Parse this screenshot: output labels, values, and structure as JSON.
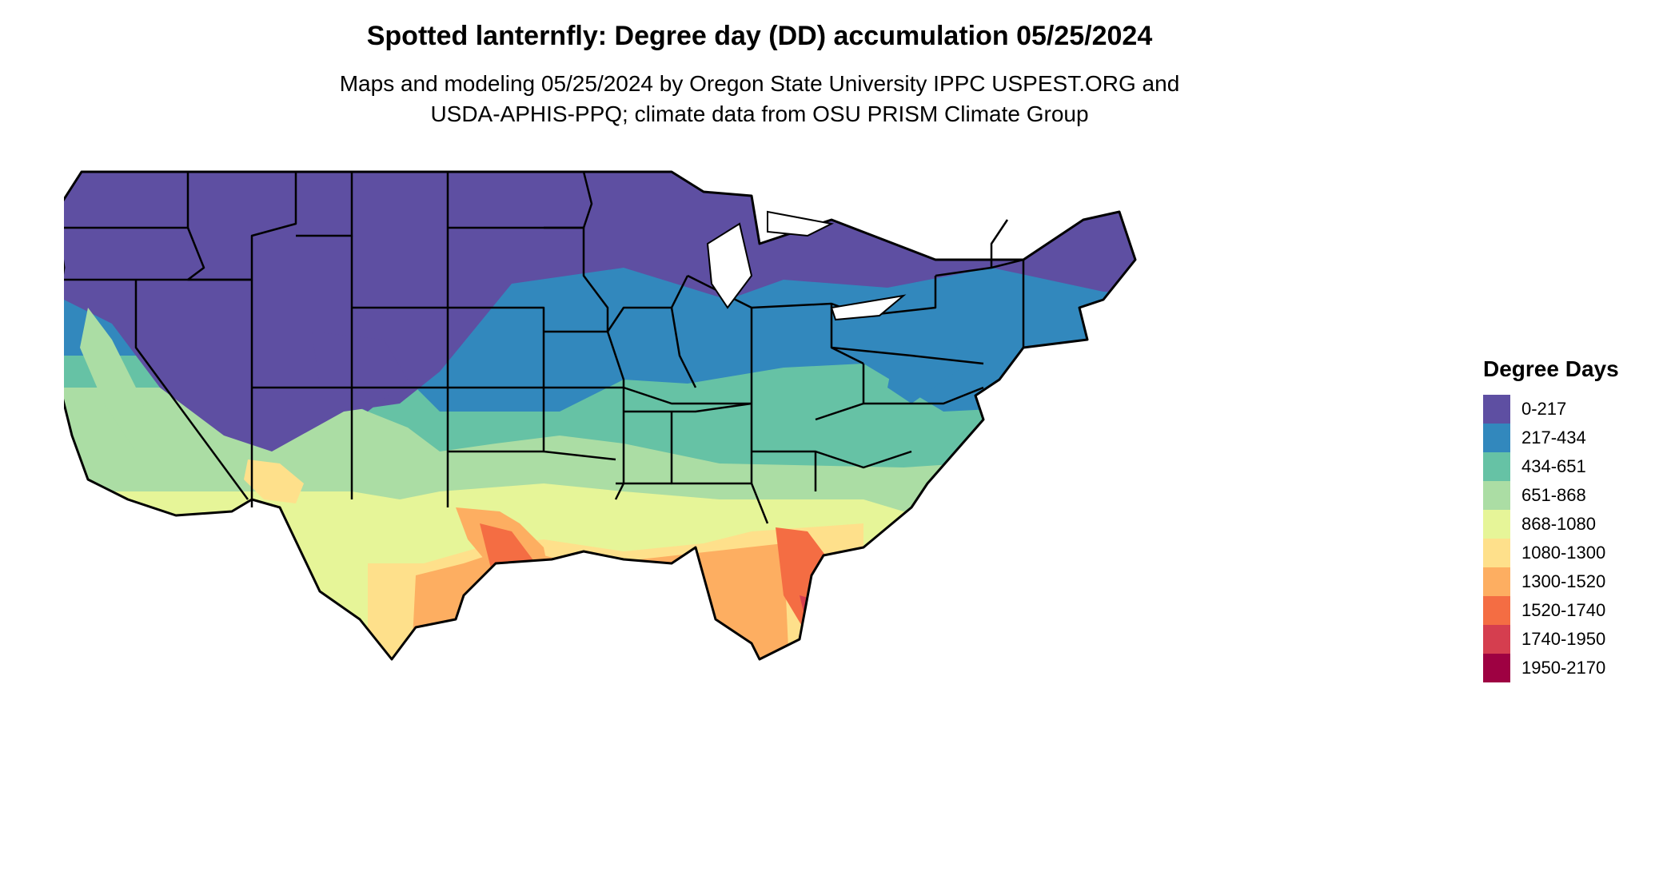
{
  "title": "Spotted lanternfly: Degree day (DD) accumulation 05/25/2024",
  "subtitle_line1": "Maps and modeling 05/25/2024 by Oregon State University IPPC USPEST.ORG and",
  "subtitle_line2": "USDA-APHIS-PPQ; climate data from OSU PRISM Climate Group",
  "legend": {
    "title": "Degree Days",
    "items": [
      {
        "label": "0-217",
        "color": "#5E4FA2"
      },
      {
        "label": "217-434",
        "color": "#3288BD"
      },
      {
        "label": "434-651",
        "color": "#66C2A5"
      },
      {
        "label": "651-868",
        "color": "#ABDDA4"
      },
      {
        "label": "868-1080",
        "color": "#E6F598"
      },
      {
        "label": "1080-1300",
        "color": "#FEE08B"
      },
      {
        "label": "1300-1520",
        "color": "#FDAE61"
      },
      {
        "label": "1520-1740",
        "color": "#F46D43"
      },
      {
        "label": "1740-1950",
        "color": "#D53E4F"
      },
      {
        "label": "1950-2170",
        "color": "#9E0142"
      }
    ]
  },
  "map": {
    "region": "contiguous United States",
    "boundary_color": "#000000"
  }
}
